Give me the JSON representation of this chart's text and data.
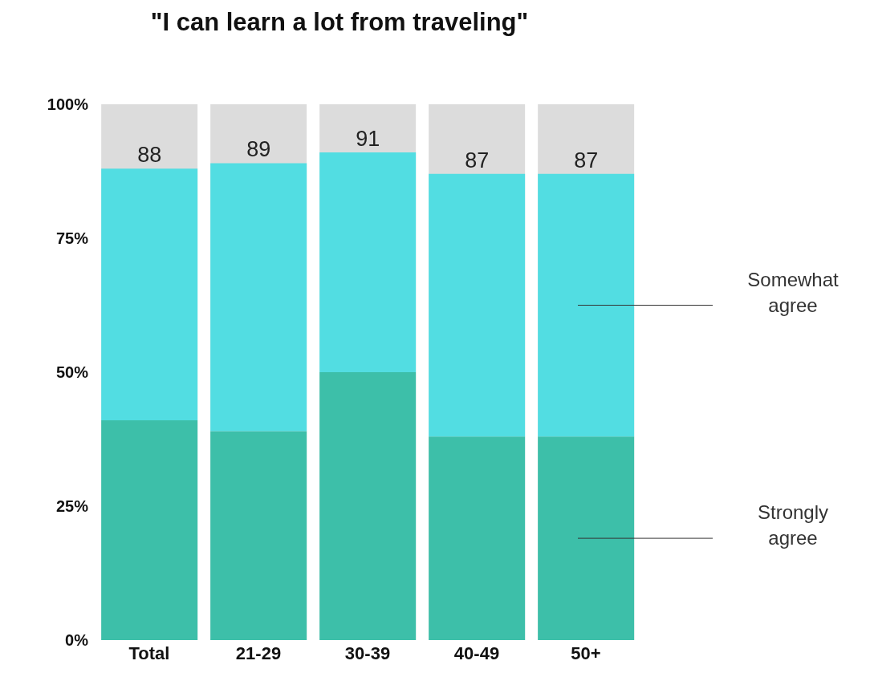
{
  "chart_data": {
    "type": "bar",
    "title": "\"I can learn a lot from traveling\"",
    "categories": [
      "Total",
      "21-29",
      "30-39",
      "40-49",
      "50+"
    ],
    "stacked": true,
    "series": [
      {
        "name": "Strongly agree",
        "color": "#3dbfa9",
        "values": [
          41,
          39,
          50,
          38,
          38
        ]
      },
      {
        "name": "Somewhat agree",
        "color": "#52dde2",
        "values": [
          47,
          50,
          41,
          49,
          49
        ]
      }
    ],
    "totals": [
      "88",
      "89",
      "91",
      "87",
      "87"
    ],
    "ylim": [
      0,
      100
    ],
    "yticks": [
      {
        "value": 0,
        "label": "0%"
      },
      {
        "value": 25,
        "label": "25%"
      },
      {
        "value": 50,
        "label": "50%"
      },
      {
        "value": 75,
        "label": "75%"
      },
      {
        "value": 100,
        "label": "100%"
      }
    ],
    "grid": false,
    "legend": "right"
  }
}
